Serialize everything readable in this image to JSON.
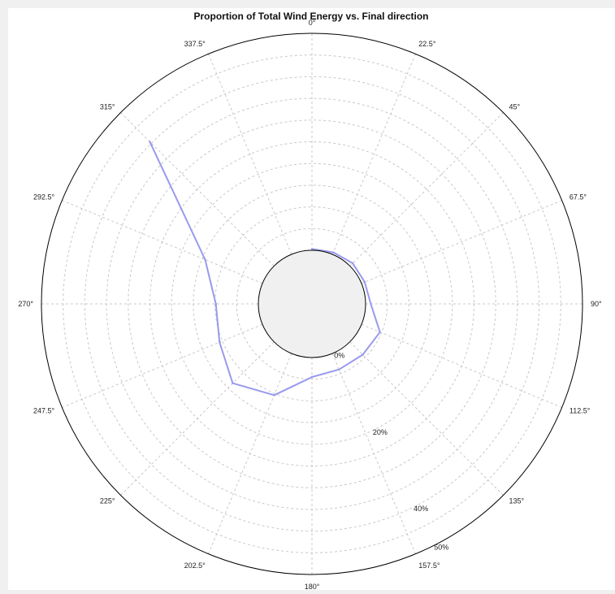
{
  "chart_data": {
    "type": "polar-line",
    "title": "Proportion of Total Wind Energy vs. Final direction",
    "direction_unit": "°",
    "angle_labels": [
      "0°",
      "22.5°",
      "45°",
      "67.5°",
      "90°",
      "112.5°",
      "135°",
      "157.5°",
      "180°",
      "202.5°",
      "225°",
      "247.5°",
      "270°",
      "292.5°",
      "315°",
      "337.5°"
    ],
    "radial_labels": [
      {
        "value": 0,
        "label": "0%"
      },
      {
        "value": 20,
        "label": "20%"
      },
      {
        "value": 40,
        "label": "40%"
      },
      {
        "value": 50,
        "label": "50%"
      }
    ],
    "rlim": [
      0,
      50
    ],
    "radial_grid_step": 5,
    "angular_grid_step": 22.5,
    "grid": true,
    "series": [
      {
        "color": "#9999ee",
        "angles": [
          0,
          22.5,
          45,
          67.5,
          90,
          112.5,
          135,
          157.5,
          180,
          202.5,
          225,
          247.5,
          270,
          292.5,
          315
        ],
        "values": [
          0.3,
          0.5,
          0.9,
          0.8,
          1.2,
          4.6,
          4.2,
          4.0,
          4.5,
          10.4,
          13.5,
          10.7,
          9.8,
          14.3,
          40.5
        ]
      }
    ]
  }
}
